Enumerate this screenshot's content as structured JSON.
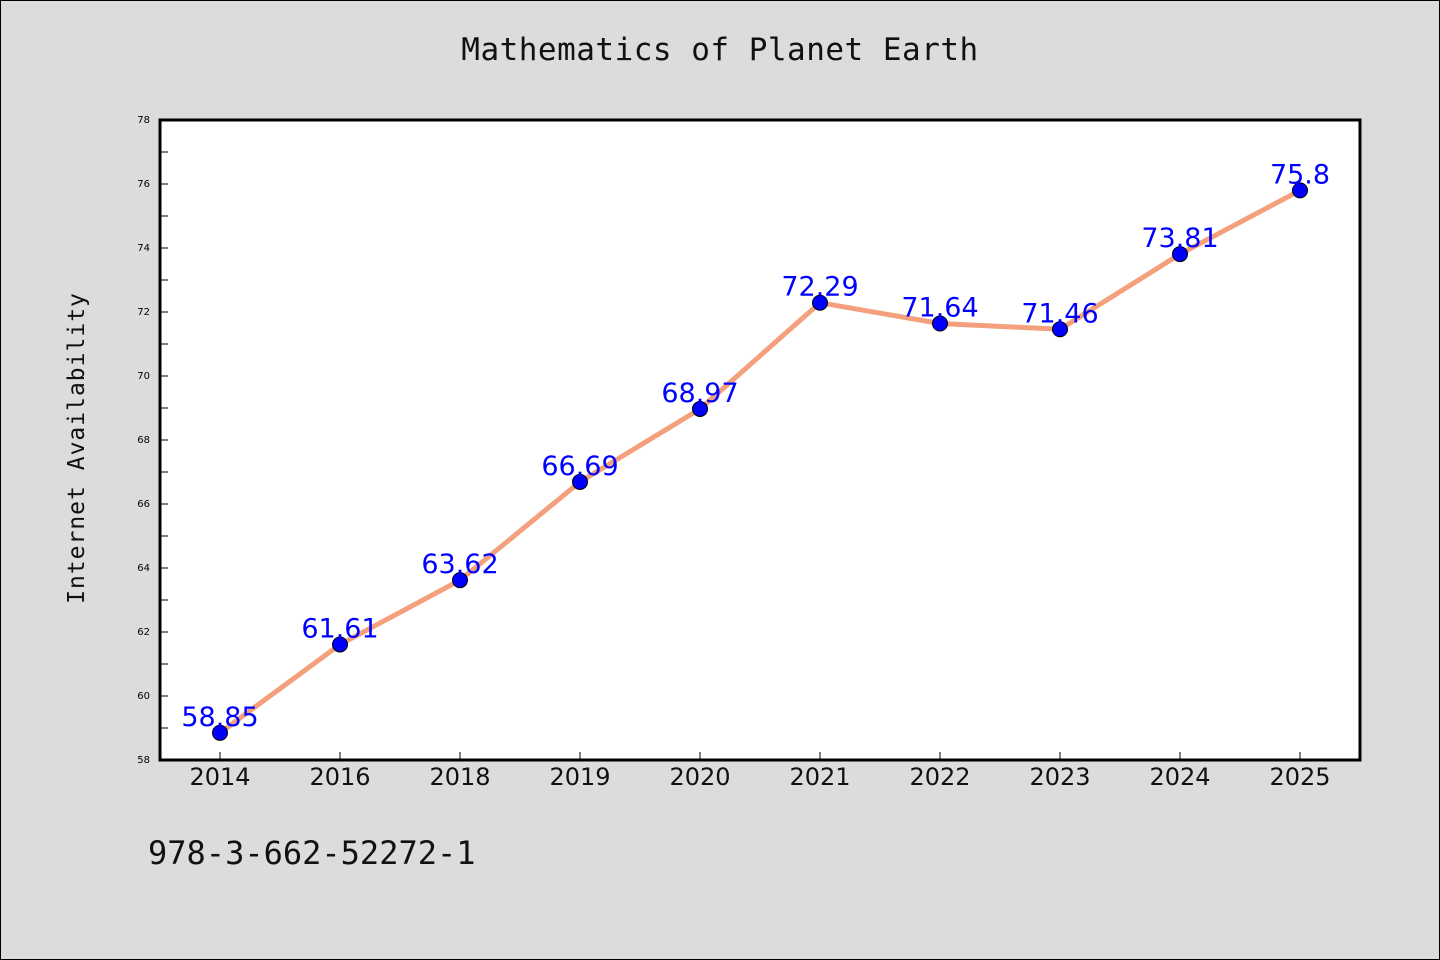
{
  "title": "Mathematics of Planet Earth",
  "footnote": "978-3-662-52272-1",
  "colors": {
    "background": "#dcdcdc",
    "plot_area": "#ffffff",
    "line": "#f4a07c",
    "marker": "#0000ff",
    "data_label": "#0000ff"
  },
  "chart_data": {
    "type": "line",
    "title": "Mathematics of Planet Earth",
    "xlabel": "",
    "ylabel": "Internet Availability",
    "categories": [
      "2014",
      "2016",
      "2018",
      "2019",
      "2020",
      "2021",
      "2022",
      "2023",
      "2024",
      "2025"
    ],
    "series": [
      {
        "values": [
          58.85,
          61.61,
          63.62,
          66.69,
          68.97,
          72.29,
          71.64,
          71.46,
          73.81,
          75.8
        ],
        "labels": [
          "58.85",
          "61.61",
          "63.62",
          "66.69",
          "68.97",
          "72.29",
          "71.64",
          "71.46",
          "73.81",
          "75.8"
        ]
      }
    ],
    "ylim": [
      58,
      78
    ],
    "yticks": [
      58,
      60,
      62,
      64,
      66,
      68,
      70,
      72,
      74,
      76,
      78
    ],
    "grid": false,
    "legend": "none"
  }
}
